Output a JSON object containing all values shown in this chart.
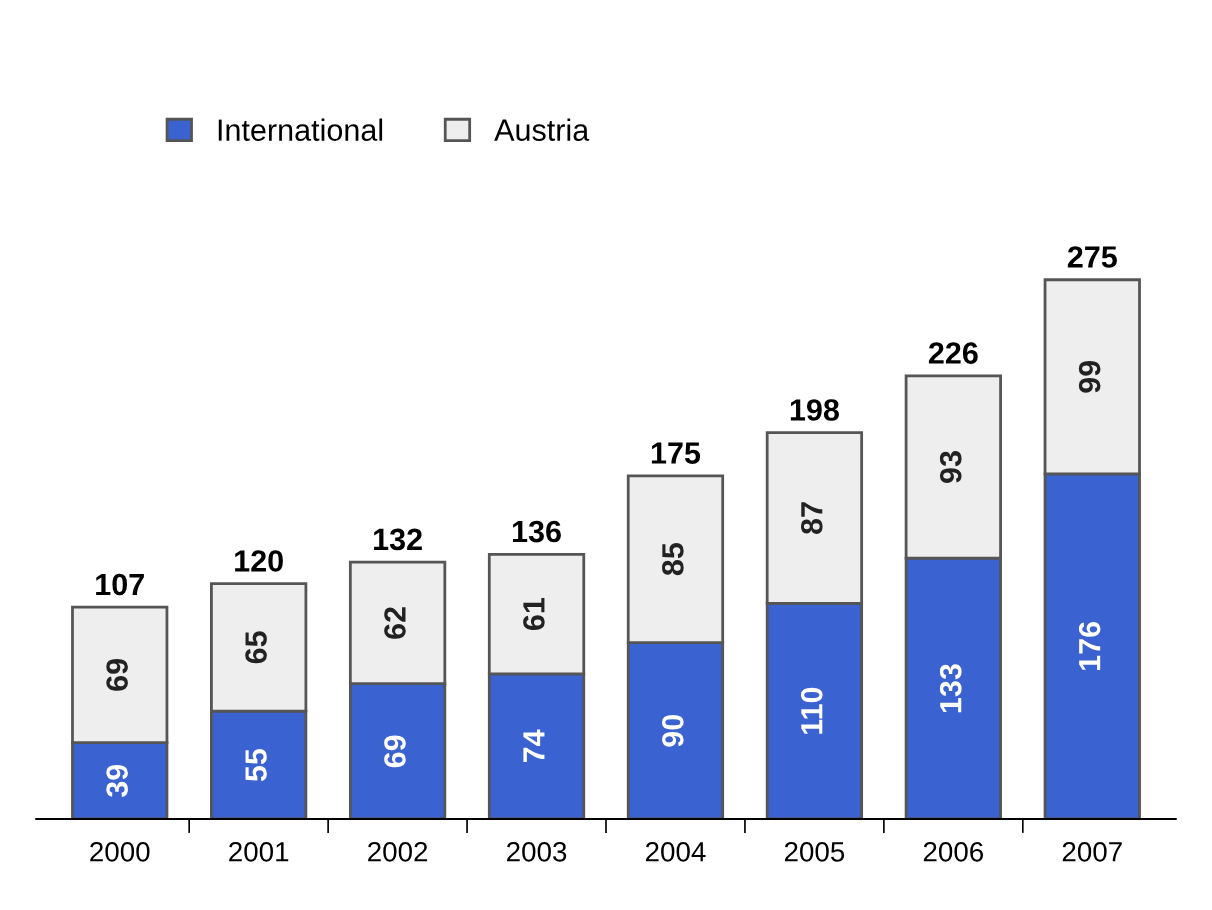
{
  "chart_data": {
    "type": "bar",
    "stacked": true,
    "categories": [
      "2000",
      "2001",
      "2002",
      "2003",
      "2004",
      "2005",
      "2006",
      "2007"
    ],
    "series": [
      {
        "name": "International",
        "color": "#3a62d0",
        "values": [
          39,
          55,
          69,
          74,
          90,
          110,
          133,
          176
        ]
      },
      {
        "name": "Austria",
        "color": "#eeeeee",
        "values": [
          69,
          65,
          62,
          61,
          85,
          87,
          93,
          99
        ]
      }
    ],
    "totals": [
      "107",
      "120",
      "132",
      "136",
      "175",
      "198",
      "226",
      "275"
    ],
    "data_labels": true,
    "legend": "top",
    "grid": false
  }
}
